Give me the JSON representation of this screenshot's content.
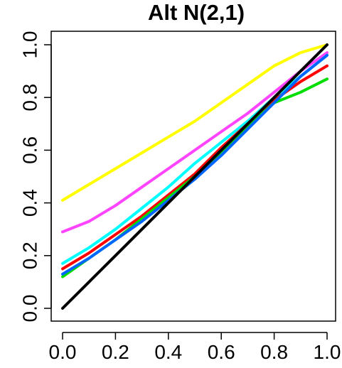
{
  "chart_data": {
    "type": "line",
    "title": "Alt N(2,1)",
    "xlabel": "",
    "ylabel": "",
    "xlim": [
      0,
      1
    ],
    "ylim": [
      0,
      1
    ],
    "x_ticks": [
      "0.0",
      "0.2",
      "0.4",
      "0.6",
      "0.8",
      "1.0"
    ],
    "y_ticks": [
      "0.0",
      "0.2",
      "0.4",
      "0.6",
      "0.8",
      "1.0"
    ],
    "grid": false,
    "legend": "none",
    "x": [
      0.0,
      0.1,
      0.2,
      0.3,
      0.4,
      0.5,
      0.6,
      0.7,
      0.8,
      0.9,
      1.0
    ],
    "series": [
      {
        "color": "#ffff00",
        "values": [
          0.41,
          0.47,
          0.53,
          0.59,
          0.65,
          0.71,
          0.78,
          0.85,
          0.92,
          0.97,
          1.0
        ]
      },
      {
        "color": "#ff44ff",
        "values": [
          0.29,
          0.33,
          0.39,
          0.46,
          0.53,
          0.6,
          0.67,
          0.74,
          0.82,
          0.9,
          0.97
        ]
      },
      {
        "color": "#00ffff",
        "values": [
          0.17,
          0.23,
          0.3,
          0.38,
          0.46,
          0.55,
          0.63,
          0.71,
          0.8,
          0.88,
          0.96
        ]
      },
      {
        "color": "#ff0000",
        "values": [
          0.15,
          0.21,
          0.28,
          0.35,
          0.43,
          0.51,
          0.61,
          0.7,
          0.79,
          0.86,
          0.92
        ]
      },
      {
        "color": "#00dd00",
        "values": [
          0.12,
          0.19,
          0.26,
          0.34,
          0.42,
          0.5,
          0.59,
          0.69,
          0.78,
          0.82,
          0.87
        ]
      },
      {
        "color": "#0066ff",
        "values": [
          0.13,
          0.19,
          0.26,
          0.33,
          0.41,
          0.49,
          0.58,
          0.68,
          0.78,
          0.88,
          0.96
        ]
      },
      {
        "color": "#000000",
        "values": [
          0.0,
          0.1,
          0.2,
          0.3,
          0.4,
          0.5,
          0.6,
          0.7,
          0.8,
          0.9,
          1.0
        ]
      }
    ]
  }
}
